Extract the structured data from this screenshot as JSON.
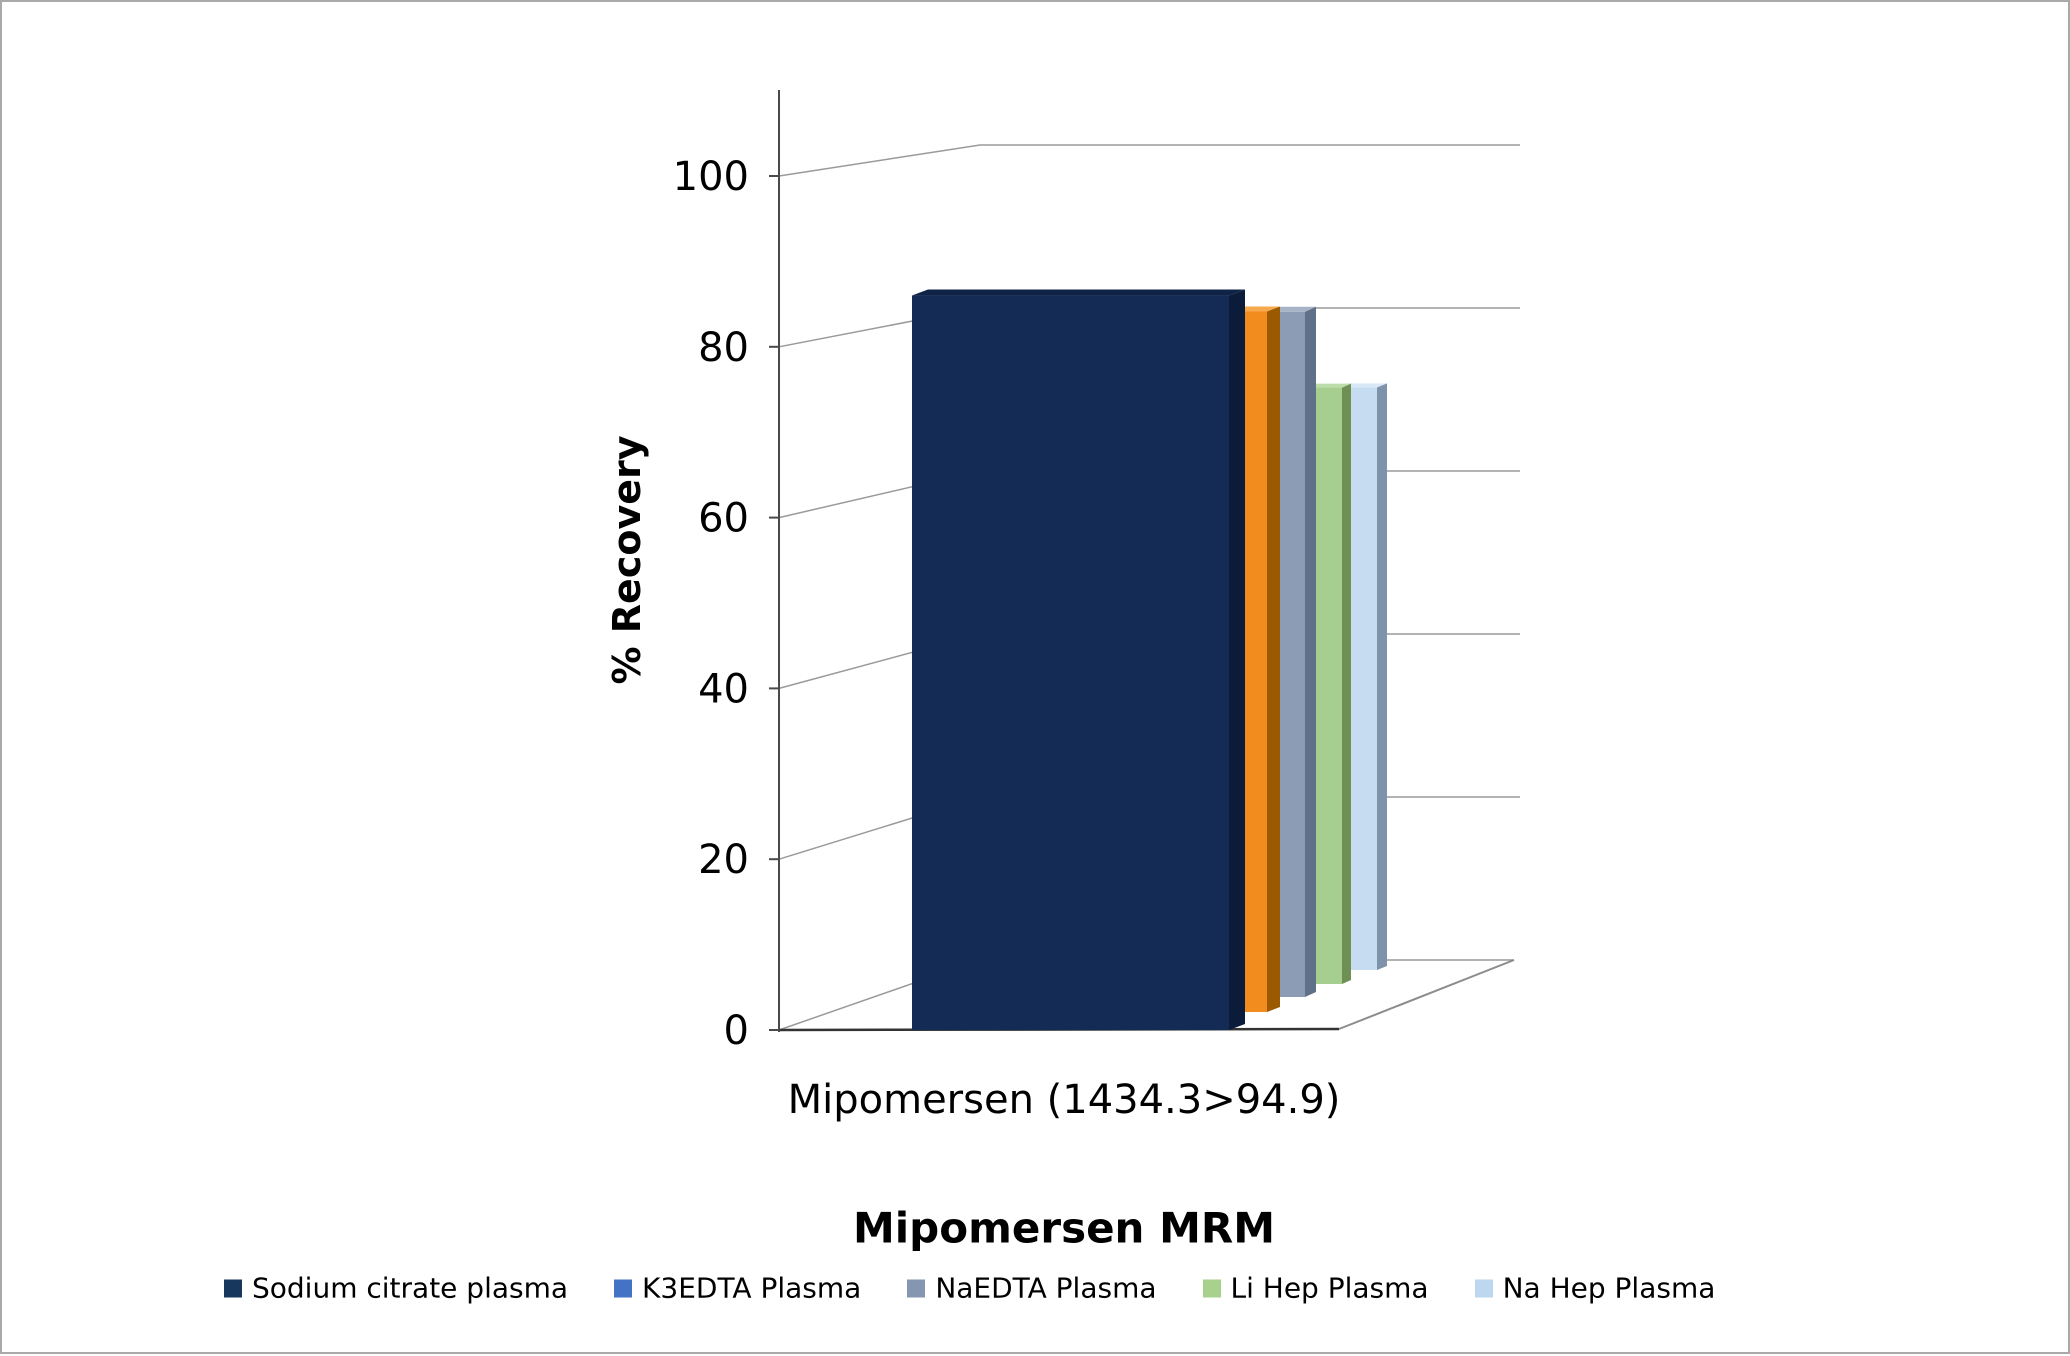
{
  "chart_data": {
    "type": "bar",
    "variant": "3d-clustered-column, series along depth axis, single category",
    "title": "",
    "categories": [
      "Mipomersen (1434.3>94.9)"
    ],
    "series": [
      {
        "name": "Sodium citrate plasma",
        "values": [
          86
        ],
        "legend_color": "#17375D",
        "bar_front": "#142C55",
        "bar_side": "#0B1B3A",
        "bar_top": "#0F2347"
      },
      {
        "name": "K3EDTA Plasma",
        "values": [
          83
        ],
        "legend_color": "#4472C4",
        "bar_front": "#F28C1E",
        "bar_side": "#9C5A00",
        "bar_top": "#F7A94E"
      },
      {
        "name": "NaEDTA Plasma",
        "values": [
          82
        ],
        "legend_color": "#8496B0",
        "bar_front": "#8C9CB4",
        "bar_side": "#5F7186",
        "bar_top": "#A7B3C6"
      },
      {
        "name": "Li Hep Plasma",
        "values": [
          72
        ],
        "legend_color": "#A9D18E",
        "bar_front": "#A6CE8E",
        "bar_side": "#6E9055",
        "bar_top": "#BCDCA9"
      },
      {
        "name": "Na Hep Plasma",
        "values": [
          71
        ],
        "legend_color": "#BDD7EE",
        "bar_front": "#C6DCF0",
        "bar_side": "#7E93A9",
        "bar_top": "#D9E8F7"
      }
    ],
    "xlabel": "Mipomersen MRM",
    "ylabel": "% Recovery",
    "ylim": [
      0,
      100
    ],
    "yticks": [
      0,
      20,
      40,
      60,
      80,
      100
    ],
    "grid": true,
    "legend_position": "bottom",
    "gridline_color": "#9A9A9A",
    "axis_color": "#4A4A4A",
    "background": "#FFFFFF"
  }
}
